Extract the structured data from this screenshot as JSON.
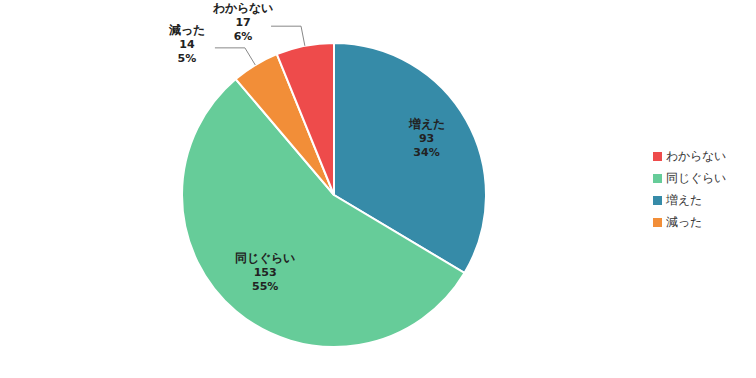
{
  "chart_data": {
    "type": "pie",
    "categories": [
      "増えた",
      "同じぐらい",
      "減った",
      "わからない"
    ],
    "values": [
      93,
      153,
      14,
      17
    ],
    "percents": [
      {
        "value": 34,
        "label": "34%"
      },
      {
        "value": 55,
        "label": "55%"
      },
      {
        "value": 5,
        "label": "5%"
      },
      {
        "value": 6,
        "label": "6%"
      }
    ],
    "colors": [
      "#368ba8",
      "#66cc99",
      "#f28e38",
      "#ee4b4b"
    ],
    "legend": "right",
    "data_labels": true
  }
}
